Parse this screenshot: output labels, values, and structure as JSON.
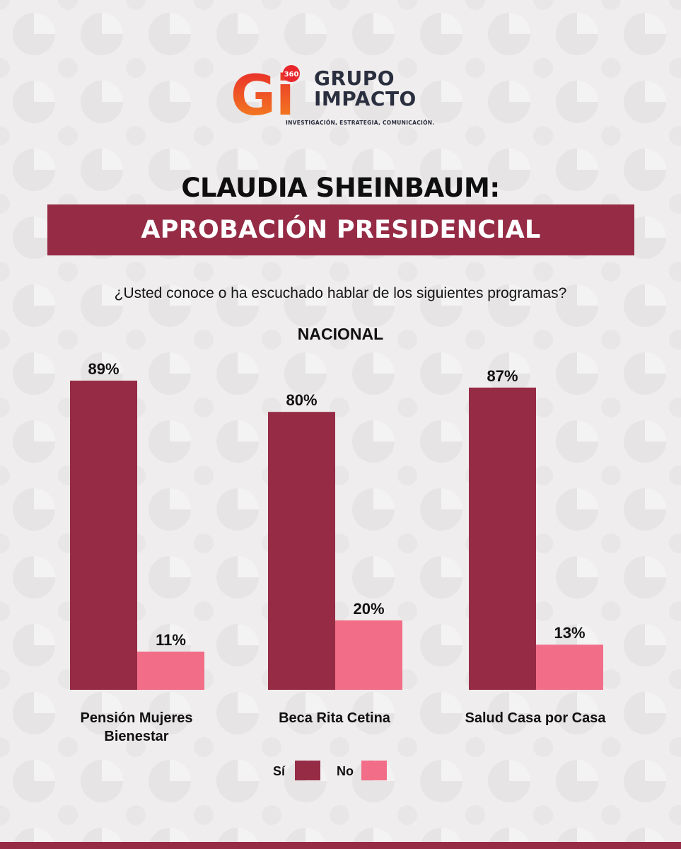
{
  "brand": {
    "logo_mark": "Gi",
    "logo_badge": "360",
    "name_line1": "GRUPO",
    "name_line2": "IMPACTO",
    "tagline": "INVESTIGACIÓN, ESTRATEGIA, COMUNICACIÓN."
  },
  "header": {
    "title": "CLAUDIA SHEINBAUM:",
    "banner": "APROBACIÓN PRESIDENCIAL"
  },
  "question": "¿Usted conoce o ha escuchado hablar de los siguientes programas?",
  "colors": {
    "brand_maroon": "#962b45",
    "bar_si": "#962b45",
    "bar_no": "#f26e88",
    "background": "#efeded"
  },
  "chart_data": {
    "type": "bar",
    "title": "NACIONAL",
    "categories": [
      "Pensión Mujeres Bienestar",
      "Beca Rita Cetina",
      "Salud Casa por Casa"
    ],
    "category_lines": [
      [
        "Pensión Mujeres",
        "Bienestar"
      ],
      [
        "Beca Rita Cetina"
      ],
      [
        "Salud Casa por Casa"
      ]
    ],
    "series": [
      {
        "name": "Sí",
        "values": [
          89,
          80,
          87
        ],
        "labels": [
          "89%",
          "80%",
          "87%"
        ],
        "color": "#962b45"
      },
      {
        "name": "No",
        "values": [
          11,
          20,
          13
        ],
        "labels": [
          "11%",
          "20%",
          "13%"
        ],
        "color": "#f26e88"
      }
    ],
    "unit": "%",
    "ylim": [
      0,
      100
    ],
    "grid": false,
    "legend_position": "bottom-center"
  }
}
